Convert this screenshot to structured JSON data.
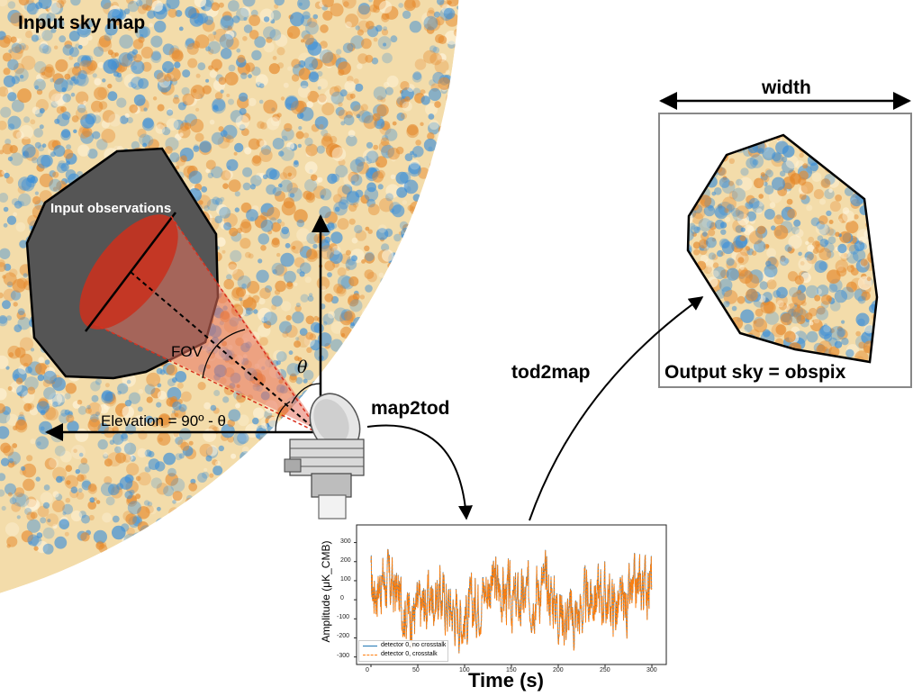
{
  "labels": {
    "input_sky_map": "Input sky map",
    "width": "width",
    "output_sky": "Output sky = obspix",
    "map2tod": "map2tod",
    "tod2map": "tod2map",
    "input_observations": "Input observations",
    "fov": "FOV",
    "theta": "θ",
    "elevation": "Elevation = 90º - θ"
  },
  "colors": {
    "sky_blue": "#3b8fd9",
    "sky_orange": "#e58a2e",
    "obs_gray": "#555555",
    "cone_red": "#d9301e",
    "series_blue": "#1f77b4",
    "series_orange": "#ff7f0e"
  },
  "chart_data": {
    "type": "line",
    "xlabel": "Time (s)",
    "ylabel": "Amplitude (μK_CMB)",
    "xlim": [
      0,
      300
    ],
    "ylim": [
      -330,
      350
    ],
    "x_ticks": [
      0,
      50,
      100,
      150,
      200,
      250,
      300
    ],
    "y_ticks": [
      -300,
      -200,
      -100,
      0,
      100,
      200,
      300
    ],
    "series": [
      {
        "name": "detector 0, no crosstalk",
        "style": "solid"
      },
      {
        "name": "detector 0, crosstalk",
        "style": "dashed"
      }
    ]
  }
}
